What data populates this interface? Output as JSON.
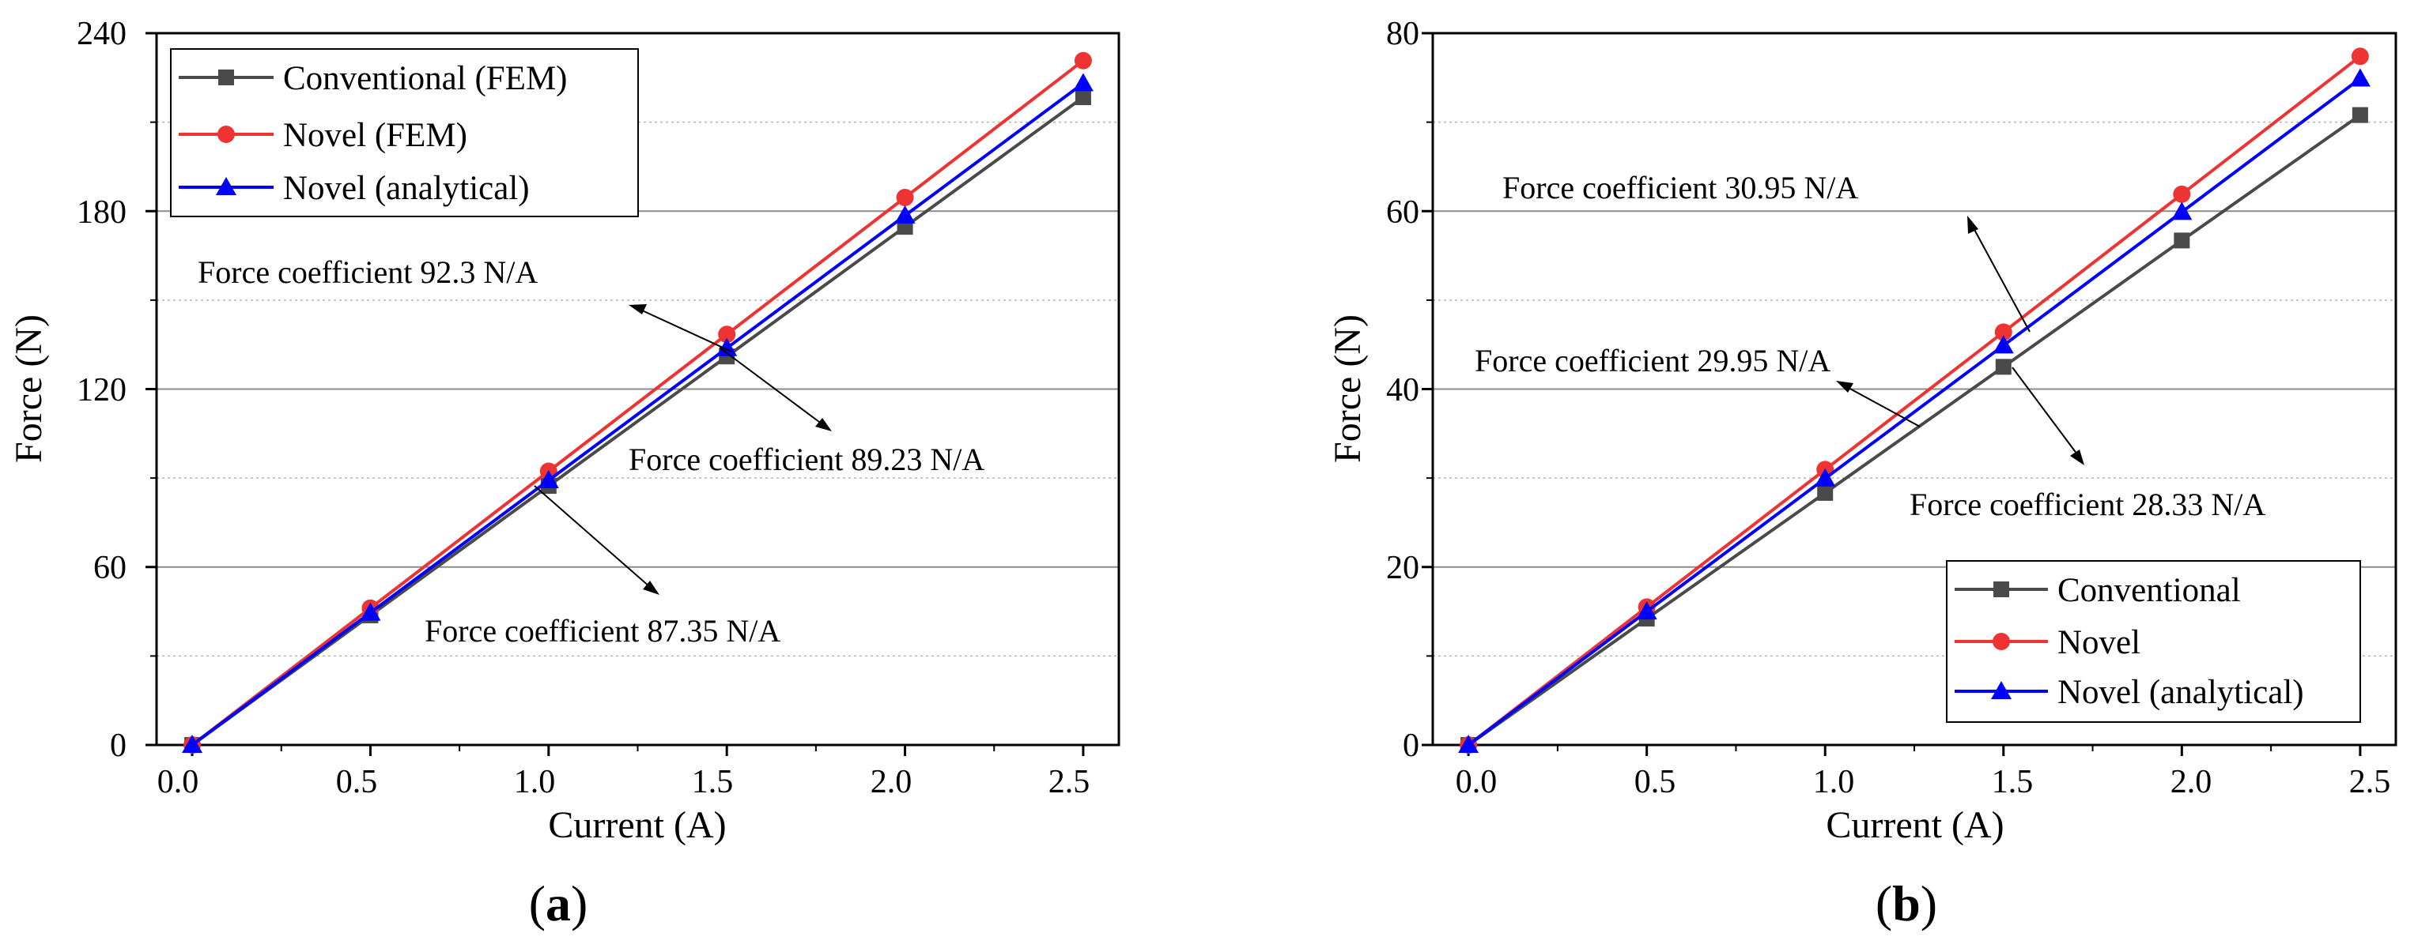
{
  "chart_data": [
    {
      "type": "line",
      "panel_label": "a",
      "xlabel": "Current (A)",
      "ylabel": "Force (N)",
      "xlim": [
        -0.1,
        2.6
      ],
      "ylim": [
        0,
        240
      ],
      "xticks": [
        "0.0",
        "0.5",
        "1.0",
        "1.5",
        "2.0",
        "2.5"
      ],
      "yticks": [
        "0",
        "60",
        "120",
        "180",
        "240"
      ],
      "minor_grid": [
        30,
        90,
        150,
        210
      ],
      "legend_position": "top-left",
      "series": [
        {
          "name": "Conventional (FEM)",
          "color": "#4a4a4a",
          "marker": "square",
          "x": [
            0,
            0.5,
            1.0,
            1.5,
            2.0,
            2.5
          ],
          "y": [
            0,
            43.7,
            87.35,
            131.0,
            174.7,
            218.4
          ]
        },
        {
          "name": "Novel (FEM)",
          "color": "#ee3333",
          "marker": "circle",
          "x": [
            0,
            0.5,
            1.0,
            1.5,
            2.0,
            2.5
          ],
          "y": [
            0,
            46.15,
            92.3,
            138.45,
            184.6,
            230.75
          ]
        },
        {
          "name": "Novel (analytical)",
          "color": "#0000ff",
          "marker": "triangle",
          "x": [
            0,
            0.5,
            1.0,
            1.5,
            2.0,
            2.5
          ],
          "y": [
            0,
            44.6,
            89.23,
            133.8,
            178.5,
            223.1
          ]
        }
      ],
      "annotations": [
        {
          "text": "Force coefficient 92.3 N/A",
          "target_x": 1.25,
          "target_y": 115.4
        },
        {
          "text": "Force coefficient 89.23 N/A",
          "target_x": 1.45,
          "target_y": 129.4
        },
        {
          "text": "Force coefficient 87.35 N/A",
          "target_x": 1.0,
          "target_y": 87.35
        }
      ]
    },
    {
      "type": "line",
      "panel_label": "b",
      "xlabel": "Current (A)",
      "ylabel": "Force (N)",
      "xlim": [
        -0.1,
        2.6
      ],
      "ylim": [
        0,
        80
      ],
      "xticks": [
        "0.0",
        "0.5",
        "1.0",
        "1.5",
        "2.0",
        "2.5"
      ],
      "yticks": [
        "0",
        "20",
        "40",
        "60",
        "80"
      ],
      "minor_grid": [
        10,
        30,
        50,
        70
      ],
      "legend_position": "bottom-right",
      "series": [
        {
          "name": "Conventional",
          "color": "#4a4a4a",
          "marker": "square",
          "x": [
            0,
            0.5,
            1.0,
            1.5,
            2.0,
            2.5
          ],
          "y": [
            0,
            14.2,
            28.33,
            42.5,
            56.7,
            70.8
          ]
        },
        {
          "name": "Novel",
          "color": "#ee3333",
          "marker": "circle",
          "x": [
            0,
            0.5,
            1.0,
            1.5,
            2.0,
            2.5
          ],
          "y": [
            0,
            15.5,
            30.95,
            46.4,
            61.9,
            77.4
          ]
        },
        {
          "name": "Novel (analytical)",
          "color": "#0000ff",
          "marker": "triangle",
          "x": [
            0,
            0.5,
            1.0,
            1.5,
            2.0,
            2.5
          ],
          "y": [
            0,
            15.0,
            29.95,
            44.9,
            59.9,
            74.9
          ]
        }
      ],
      "annotations": [
        {
          "text": "Force coefficient 30.95 N/A",
          "target_x": 1.55,
          "target_y": 48.0
        },
        {
          "text": "Force coefficient 29.95 N/A",
          "target_x": 1.37,
          "target_y": 41.0
        },
        {
          "text": "Force coefficient 28.33 N/A",
          "target_x": 1.5,
          "target_y": 42.5
        }
      ]
    }
  ]
}
